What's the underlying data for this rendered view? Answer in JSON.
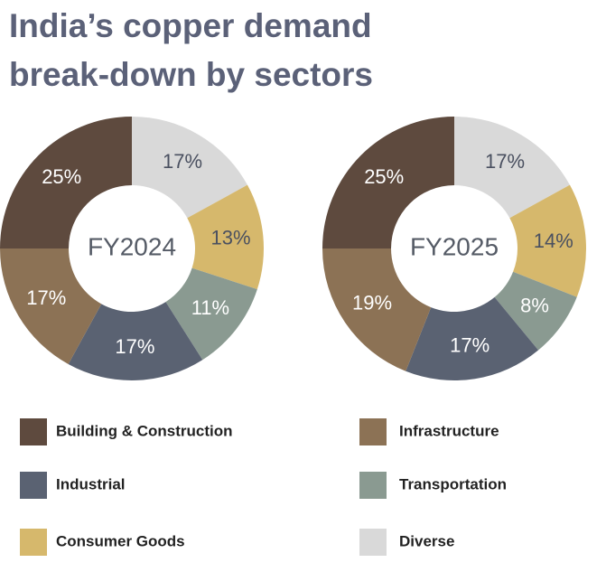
{
  "title": "India’s copper demand break-down by sectors",
  "chart_data": [
    {
      "type": "pie",
      "title": "FY2024",
      "categories": [
        "Diverse",
        "Consumer Goods",
        "Transportation",
        "Industrial",
        "Infrastructure",
        "Building & Construction"
      ],
      "values": [
        17,
        13,
        11,
        17,
        17,
        25
      ],
      "value_labels": [
        "17%",
        "13%",
        "11%",
        "17%",
        "17%",
        "25%"
      ],
      "colors": [
        "#d9d9d9",
        "#d6b86c",
        "#8a9a91",
        "#5a6272",
        "#8c7255",
        "#5e4a3e"
      ]
    },
    {
      "type": "pie",
      "title": "FY2025",
      "categories": [
        "Diverse",
        "Consumer Goods",
        "Transportation",
        "Industrial",
        "Infrastructure",
        "Building & Construction"
      ],
      "values": [
        17,
        14,
        8,
        17,
        19,
        25
      ],
      "value_labels": [
        "17%",
        "14%",
        "8%",
        "17%",
        "19%",
        "25%"
      ],
      "colors": [
        "#d9d9d9",
        "#d6b86c",
        "#8a9a91",
        "#5a6272",
        "#8c7255",
        "#5e4a3e"
      ]
    }
  ]
}
